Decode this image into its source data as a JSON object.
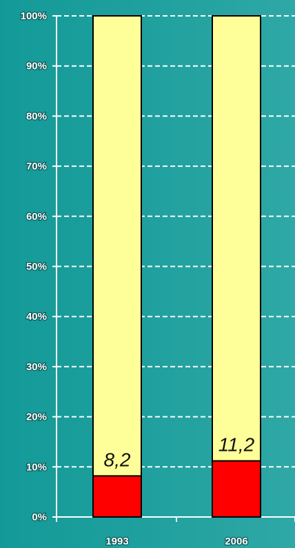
{
  "chart_data": {
    "type": "bar",
    "stacked": true,
    "percent_stacked": true,
    "categories": [
      "1993",
      "2006"
    ],
    "series": [
      {
        "values": [
          8.2,
          11.2
        ],
        "color": "#ff0000"
      },
      {
        "values": [
          91.8,
          88.8
        ],
        "color": "#ffff99"
      }
    ],
    "data_labels": [
      "8,2",
      "11,2"
    ],
    "y_ticks": [
      "0%",
      "10%",
      "20%",
      "30%",
      "40%",
      "50%",
      "60%",
      "70%",
      "80%",
      "90%",
      "100%"
    ],
    "ylim": [
      0,
      100
    ],
    "grid": true,
    "grid_style": "dashed",
    "title": "",
    "xlabel": "",
    "ylabel": ""
  },
  "colors": {
    "background": "#1fa09e",
    "grid": "#ffffff",
    "bar_outline": "#000000"
  }
}
